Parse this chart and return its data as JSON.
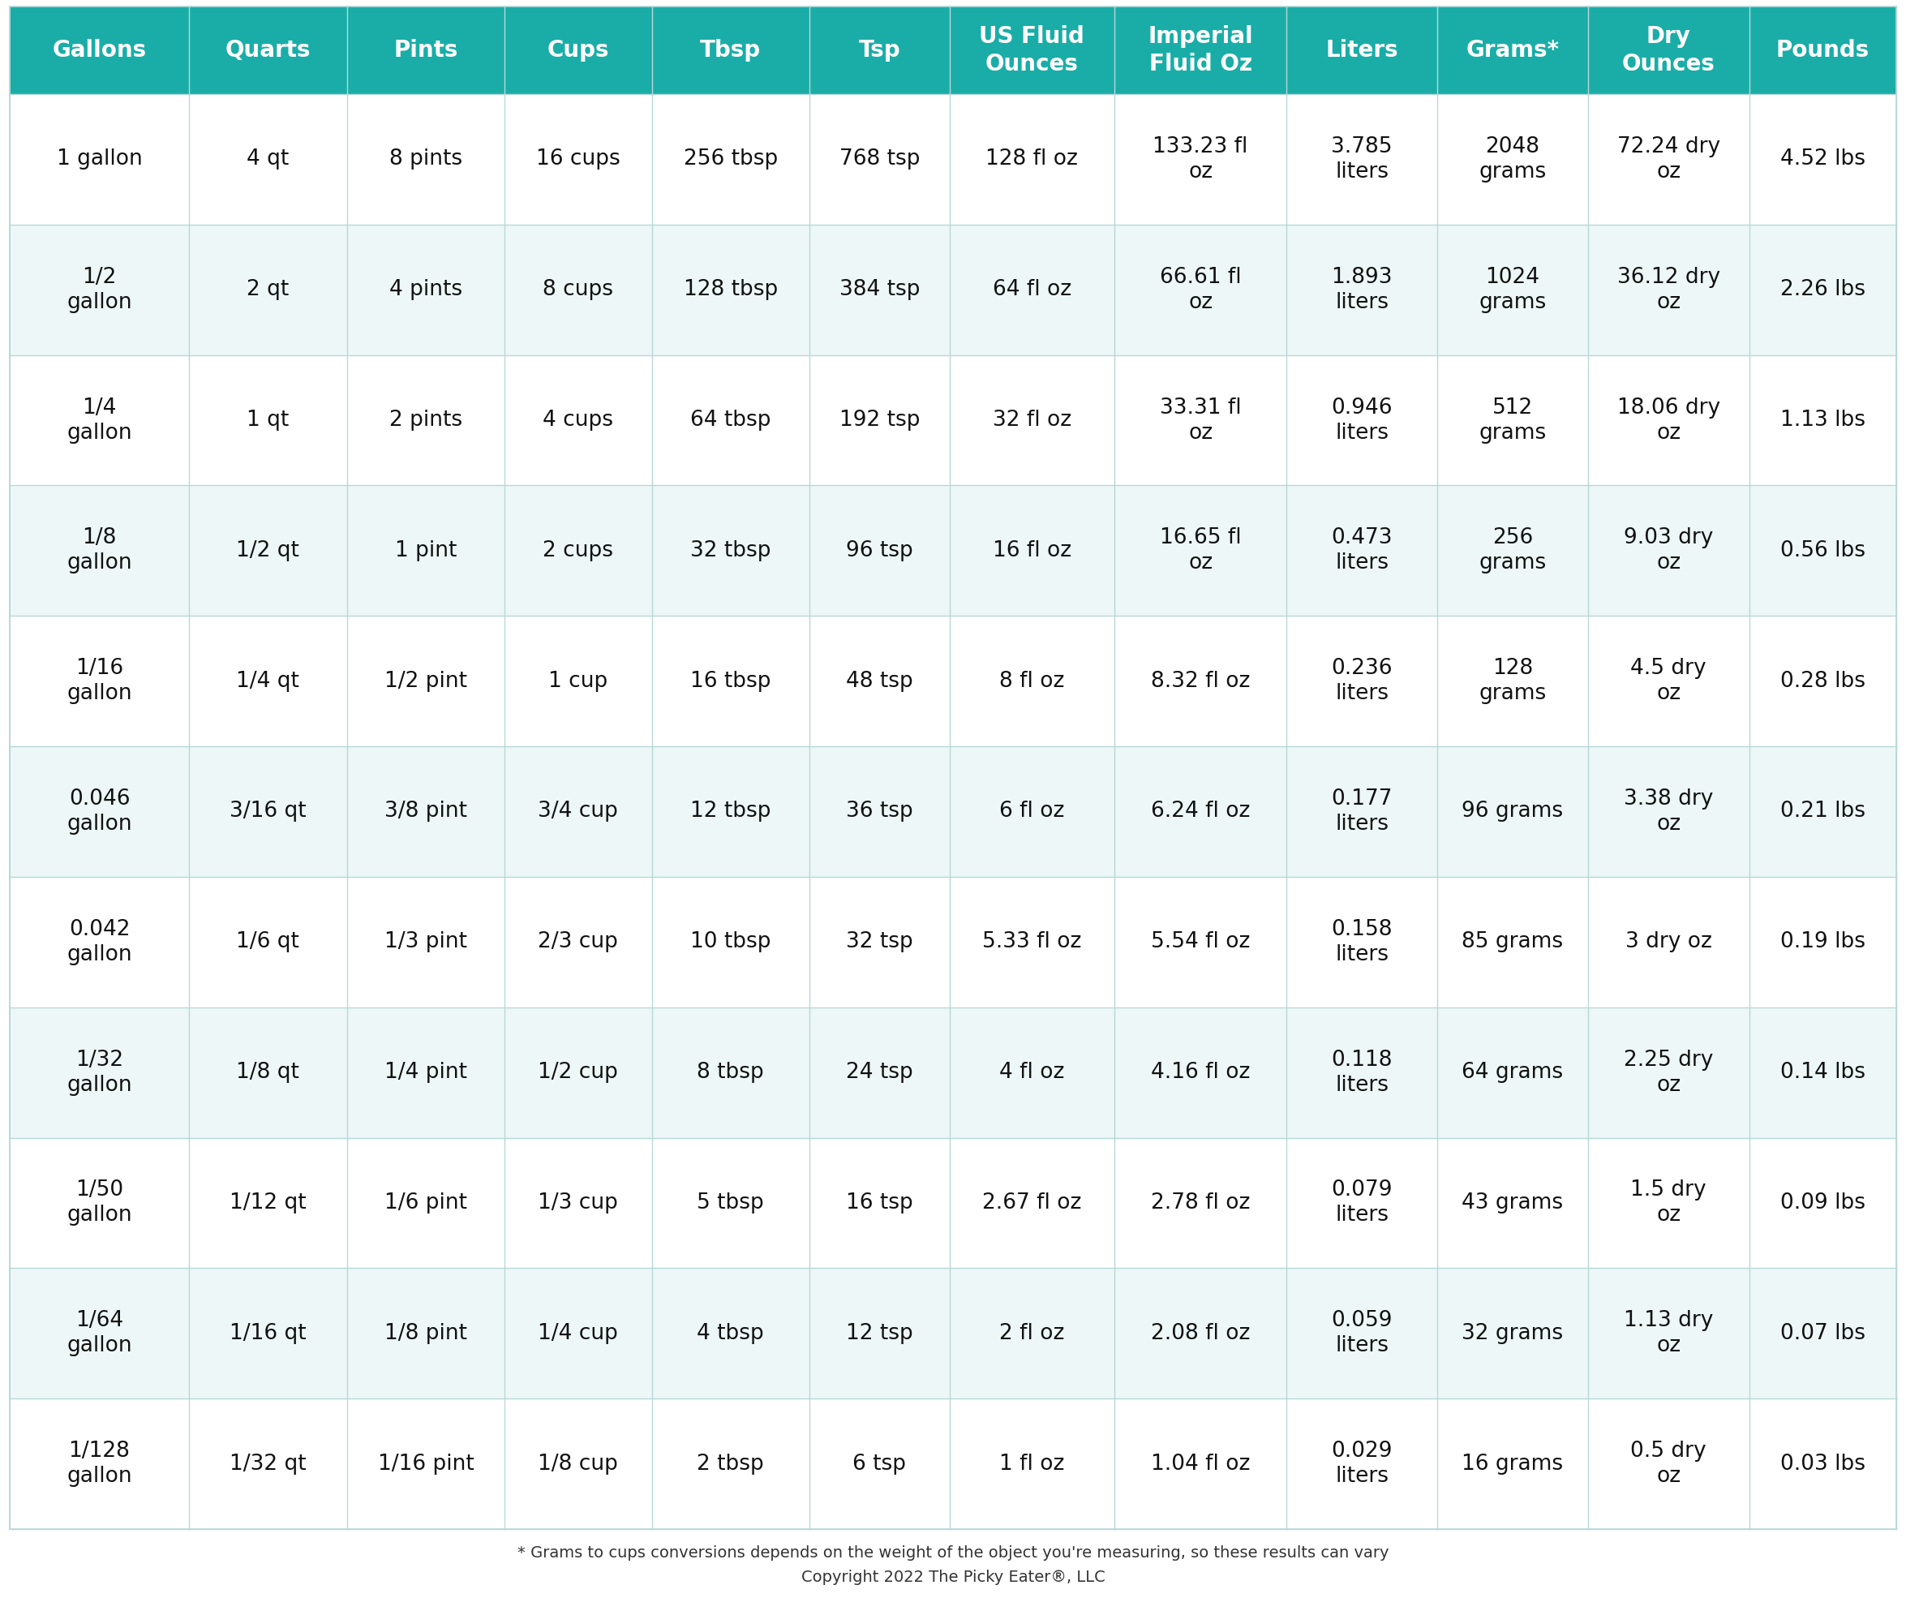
{
  "headers": [
    "Gallons",
    "Quarts",
    "Pints",
    "Cups",
    "Tbsp",
    "Tsp",
    "US Fluid\nOunces",
    "Imperial\nFluid Oz",
    "Liters",
    "Grams*",
    "Dry\nOunces",
    "Pounds"
  ],
  "rows": [
    [
      "1 gallon",
      "4 qt",
      "8 pints",
      "16 cups",
      "256 tbsp",
      "768 tsp",
      "128 fl oz",
      "133.23 fl\noz",
      "3.785\nliters",
      "2048\ngrams",
      "72.24 dry\noz",
      "4.52 lbs"
    ],
    [
      "1/2\ngallon",
      "2 qt",
      "4 pints",
      "8 cups",
      "128 tbsp",
      "384 tsp",
      "64 fl oz",
      "66.61 fl\noz",
      "1.893\nliters",
      "1024\ngrams",
      "36.12 dry\noz",
      "2.26 lbs"
    ],
    [
      "1/4\ngallon",
      "1 qt",
      "2 pints",
      "4 cups",
      "64 tbsp",
      "192 tsp",
      "32 fl oz",
      "33.31 fl\noz",
      "0.946\nliters",
      "512\ngrams",
      "18.06 dry\noz",
      "1.13 lbs"
    ],
    [
      "1/8\ngallon",
      "1/2 qt",
      "1 pint",
      "2 cups",
      "32 tbsp",
      "96 tsp",
      "16 fl oz",
      "16.65 fl\noz",
      "0.473\nliters",
      "256\ngrams",
      "9.03 dry\noz",
      "0.56 lbs"
    ],
    [
      "1/16\ngallon",
      "1/4 qt",
      "1/2 pint",
      "1 cup",
      "16 tbsp",
      "48 tsp",
      "8 fl oz",
      "8.32 fl oz",
      "0.236\nliters",
      "128\ngrams",
      "4.5 dry\noz",
      "0.28 lbs"
    ],
    [
      "0.046\ngallon",
      "3/16 qt",
      "3/8 pint",
      "3/4 cup",
      "12 tbsp",
      "36 tsp",
      "6 fl oz",
      "6.24 fl oz",
      "0.177\nliters",
      "96 grams",
      "3.38 dry\noz",
      "0.21 lbs"
    ],
    [
      "0.042\ngallon",
      "1/6 qt",
      "1/3 pint",
      "2/3 cup",
      "10 tbsp",
      "32 tsp",
      "5.33 fl oz",
      "5.54 fl oz",
      "0.158\nliters",
      "85 grams",
      "3 dry oz",
      "0.19 lbs"
    ],
    [
      "1/32\ngallon",
      "1/8 qt",
      "1/4 pint",
      "1/2 cup",
      "8 tbsp",
      "24 tsp",
      "4 fl oz",
      "4.16 fl oz",
      "0.118\nliters",
      "64 grams",
      "2.25 dry\noz",
      "0.14 lbs"
    ],
    [
      "1/50\ngallon",
      "1/12 qt",
      "1/6 pint",
      "1/3 cup",
      "5 tbsp",
      "16 tsp",
      "2.67 fl oz",
      "2.78 fl oz",
      "0.079\nliters",
      "43 grams",
      "1.5 dry\noz",
      "0.09 lbs"
    ],
    [
      "1/64\ngallon",
      "1/16 qt",
      "1/8 pint",
      "1/4 cup",
      "4 tbsp",
      "12 tsp",
      "2 fl oz",
      "2.08 fl oz",
      "0.059\nliters",
      "32 grams",
      "1.13 dry\noz",
      "0.07 lbs"
    ],
    [
      "1/128\ngallon",
      "1/32 qt",
      "1/16 pint",
      "1/8 cup",
      "2 tbsp",
      "6 tsp",
      "1 fl oz",
      "1.04 fl oz",
      "0.029\nliters",
      "16 grams",
      "0.5 dry\noz",
      "0.03 lbs"
    ]
  ],
  "header_bg": "#1aada8",
  "header_fg": "#ffffff",
  "row_bg_odd": "#ffffff",
  "row_bg_even": "#edf7f7",
  "border_color": "#b8d8d8",
  "text_color": "#111111",
  "footnote1": "* Grams to cups conversions depends on the weight of the object you're measuring, so these results can vary",
  "footnote2": "Copyright 2022 The Picky Eater®, LLC",
  "header_fontsize": 20,
  "cell_fontsize": 19,
  "footnote_fontsize": 14
}
